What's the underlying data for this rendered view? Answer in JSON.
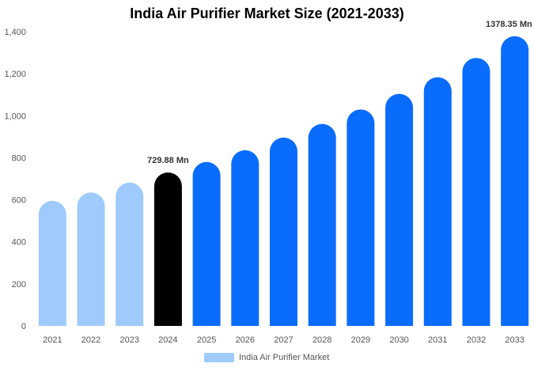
{
  "chart_data": {
    "type": "bar",
    "title": "India Air Purifier Market Size (2021-2033)",
    "categories": [
      "2021",
      "2022",
      "2023",
      "2024",
      "2025",
      "2026",
      "2027",
      "2028",
      "2029",
      "2030",
      "2031",
      "2032",
      "2033"
    ],
    "series": [
      {
        "name": "India Air Purifier Market",
        "values": [
          595,
          635,
          682,
          729.88,
          780,
          836,
          896,
          961,
          1030,
          1104,
          1183,
          1275,
          1378.35
        ]
      }
    ],
    "data_labels": [
      {
        "category": "2024",
        "text": "729.88 Mn"
      },
      {
        "category": "2033",
        "text": "1378.35 Mn"
      }
    ],
    "ylim": [
      0,
      1400
    ],
    "yticks": [
      0,
      200,
      400,
      600,
      800,
      1000,
      1200,
      1400
    ],
    "ytick_labels": [
      "0",
      "200",
      "400",
      "600",
      "800",
      "1,000",
      "1,200",
      "1,400"
    ],
    "grid": false,
    "legend_position": "bottom-center",
    "colors": {
      "historical": "#9ecbfb",
      "current": "#000000",
      "forecast": "#0a6cfc",
      "legend": "#9ecbfb",
      "axis_text": "#555555"
    },
    "color_groups": {
      "historical": [
        "2021",
        "2022",
        "2023"
      ],
      "current": [
        "2024"
      ],
      "forecast": [
        "2025",
        "2026",
        "2027",
        "2028",
        "2029",
        "2030",
        "2031",
        "2032",
        "2033"
      ]
    }
  }
}
